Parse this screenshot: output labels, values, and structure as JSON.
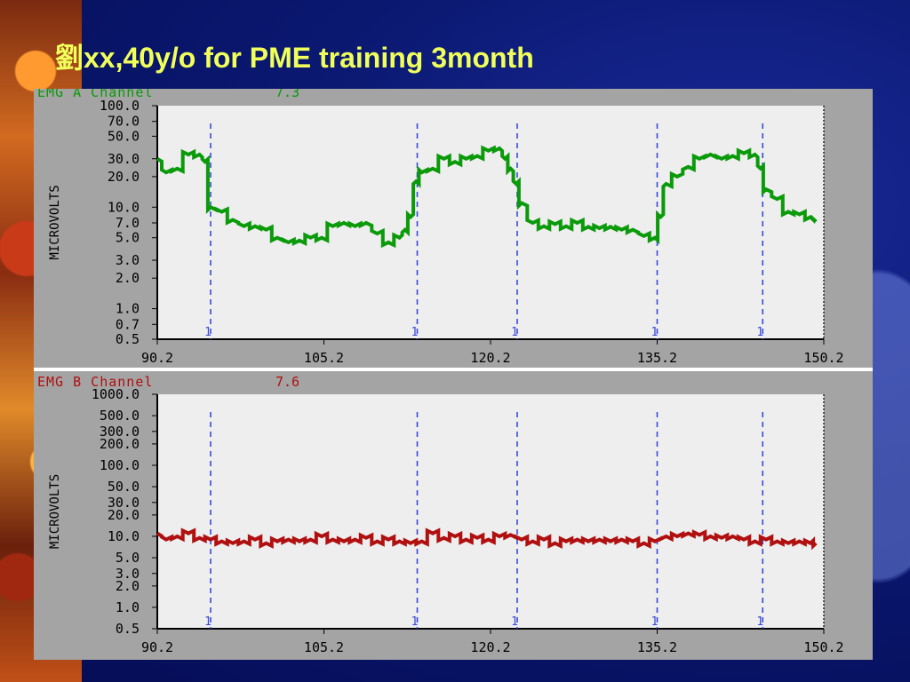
{
  "slide": {
    "title": "劉xx,40y/o for PME training 3month"
  },
  "colors": {
    "title": "#f0ff5a",
    "channel_a": "#0a9a0a",
    "channel_b": "#b01010",
    "markers": "#3a4adc",
    "plot_bg": "#eeeeee",
    "panel_bg": "#a4a4a4"
  },
  "chart_data": [
    {
      "type": "line",
      "header": "EMG A Channel",
      "header_value": "7.3",
      "ylabel": "MICROVOLTS",
      "yscale": "log",
      "ylim": [
        0.5,
        100
      ],
      "ytick_labels": [
        "100.0",
        "70.0",
        "50.0",
        "30.0",
        "20.0",
        "10.0",
        "7.0",
        "5.0",
        "3.0",
        "2.0",
        "1.0",
        "0.7",
        "0.5"
      ],
      "xlim": [
        90.2,
        150.2
      ],
      "xtick_labels": [
        "90.2",
        "105.2",
        "120.2",
        "135.2",
        "150.2"
      ],
      "event_markers": [
        {
          "x": 95.0,
          "label": "1"
        },
        {
          "x": 113.6,
          "label": "1"
        },
        {
          "x": 122.6,
          "label": "1"
        },
        {
          "x": 135.2,
          "label": "1"
        },
        {
          "x": 144.7,
          "label": "1"
        }
      ],
      "series": [
        {
          "x": [
            90.2,
            91.0,
            92.0,
            93.0,
            94.0,
            94.5,
            95.0,
            96.0,
            97.0,
            98.0,
            99.0,
            100.0,
            101.0,
            102.0,
            103.0,
            104.0,
            105.0,
            106.0,
            107.0,
            108.0,
            109.0,
            110.0,
            111.0,
            112.0,
            112.5,
            113.0,
            113.5,
            114.0,
            115.0,
            116.0,
            117.0,
            118.0,
            119.0,
            120.0,
            121.0,
            121.5,
            122.0,
            122.5,
            123.0,
            124.0,
            125.0,
            126.0,
            127.0,
            128.0,
            129.0,
            130.0,
            131.0,
            132.0,
            133.0,
            134.0,
            135.0,
            135.5,
            136.0,
            137.0,
            138.0,
            139.0,
            140.0,
            141.0,
            142.0,
            143.0,
            144.0,
            144.5,
            145.0,
            146.0,
            147.0,
            148.0,
            149.0,
            149.5
          ],
          "y": [
            30,
            22,
            24,
            33,
            33,
            28,
            10,
            9,
            7.5,
            6.5,
            6.5,
            6.0,
            5.0,
            4.5,
            4.7,
            5.0,
            5.0,
            6.5,
            7.0,
            6.5,
            7.0,
            5.5,
            4.5,
            5.0,
            6.0,
            8.0,
            18,
            22,
            24,
            30,
            28,
            30,
            32,
            36,
            38,
            30,
            24,
            17,
            11,
            7.0,
            6.5,
            6.8,
            6.5,
            7.0,
            6.4,
            6.2,
            6.4,
            6.0,
            6.0,
            5.2,
            5.0,
            8.0,
            17,
            20,
            25,
            30,
            33,
            30,
            32,
            34,
            33,
            24,
            15,
            12,
            9.0,
            8.5,
            8.0,
            7.2
          ]
        }
      ]
    },
    {
      "type": "line",
      "header": "EMG B Channel",
      "header_value": "7.6",
      "ylabel": "MICROVOLTS",
      "yscale": "log",
      "ylim": [
        0.5,
        1000
      ],
      "ytick_labels": [
        "1000.0",
        "500.0",
        "300.0",
        "200.0",
        "100.0",
        "50.0",
        "30.0",
        "20.0",
        "10.0",
        "5.0",
        "3.0",
        "2.0",
        "1.0",
        "0.5"
      ],
      "xlim": [
        90.2,
        150.2
      ],
      "xtick_labels": [
        "90.2",
        "105.2",
        "120.2",
        "135.2",
        "150.2"
      ],
      "event_markers": [
        {
          "x": 95.0,
          "label": "1"
        },
        {
          "x": 113.6,
          "label": "1"
        },
        {
          "x": 122.6,
          "label": "1"
        },
        {
          "x": 135.2,
          "label": "1"
        },
        {
          "x": 144.7,
          "label": "1"
        }
      ],
      "series": [
        {
          "x": [
            90.2,
            91.0,
            92.0,
            93.0,
            94.0,
            95.0,
            96.0,
            97.0,
            98.0,
            99.0,
            100.0,
            101.0,
            102.0,
            103.0,
            104.0,
            105.0,
            106.0,
            107.0,
            108.0,
            109.0,
            110.0,
            111.0,
            112.0,
            113.0,
            114.0,
            115.0,
            116.0,
            117.0,
            118.0,
            119.0,
            120.0,
            121.0,
            122.0,
            123.0,
            124.0,
            125.0,
            126.0,
            127.0,
            128.0,
            129.0,
            130.0,
            131.0,
            132.0,
            133.0,
            134.0,
            135.0,
            136.0,
            137.0,
            138.0,
            139.0,
            140.0,
            141.0,
            142.0,
            143.0,
            144.0,
            145.0,
            146.0,
            147.0,
            148.0,
            149.0,
            149.5
          ],
          "y": [
            11,
            9.0,
            10,
            11,
            9.5,
            9.0,
            8.5,
            8.0,
            8.5,
            9.0,
            8.0,
            8.5,
            9.0,
            8.5,
            9.0,
            10,
            9.0,
            8.5,
            9.0,
            9.5,
            8.5,
            9.0,
            8.5,
            8.0,
            8.5,
            11,
            9.5,
            10,
            9.0,
            9.5,
            9.0,
            10,
            10.5,
            9.0,
            8.5,
            9.0,
            8.0,
            8.5,
            9.0,
            8.5,
            9.0,
            8.5,
            9.0,
            8.5,
            8.0,
            8.5,
            10,
            10,
            11,
            10.5,
            10,
            9.5,
            10,
            9.0,
            8.5,
            9.0,
            8.5,
            8.0,
            8.5,
            8.0,
            8.0
          ]
        }
      ]
    }
  ]
}
